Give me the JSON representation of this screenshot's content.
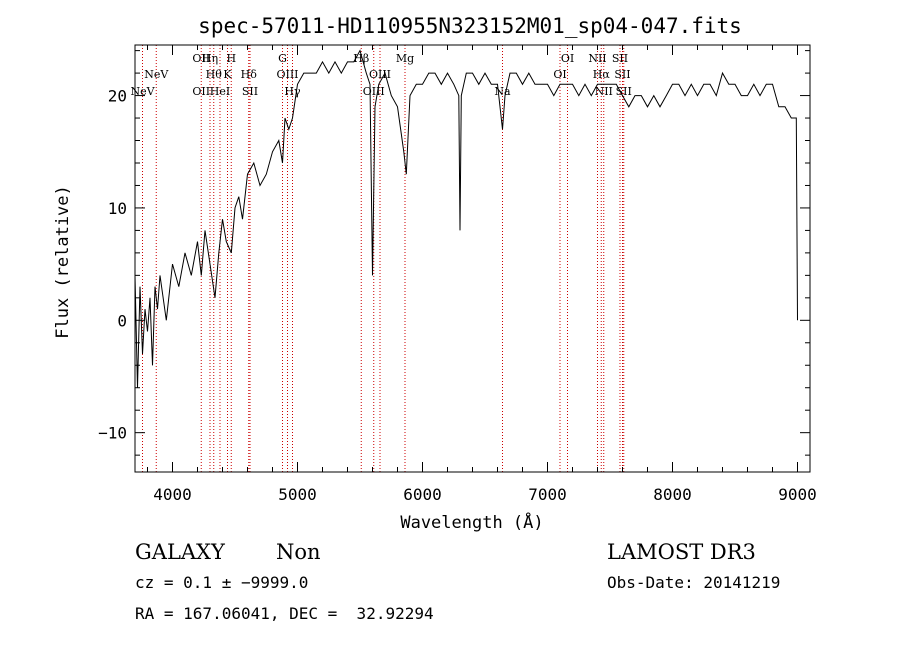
{
  "chart_data": {
    "type": "line",
    "title": "spec-57011-HD110955N323152M01_sp04-047.fits",
    "xlabel": "Wavelength (Å)",
    "ylabel": "Flux (relative)",
    "xlim": [
      3700,
      9100
    ],
    "ylim": [
      -13.5,
      24.5
    ],
    "xticks": [
      4000,
      5000,
      6000,
      7000,
      8000,
      9000
    ],
    "yticks": [
      -10,
      0,
      10,
      20
    ],
    "grid": false,
    "line_color": "#000000",
    "marker_color": "#cc0000",
    "series": [
      {
        "x": [
          3700,
          3720,
          3740,
          3760,
          3780,
          3800,
          3820,
          3840,
          3860,
          3880,
          3900,
          3950,
          4000,
          4050,
          4100,
          4150,
          4200,
          4230,
          4260,
          4300,
          4340,
          4370,
          4400,
          4430,
          4470,
          4500,
          4530,
          4560,
          4600,
          4650,
          4700,
          4750,
          4800,
          4850,
          4880,
          4900,
          4930,
          4960,
          5000,
          5050,
          5100,
          5150,
          5200,
          5250,
          5300,
          5350,
          5400,
          5450,
          5500,
          5550,
          5580,
          5600,
          5620,
          5650,
          5700,
          5750,
          5800,
          5850,
          5870,
          5900,
          5950,
          6000,
          6050,
          6100,
          6150,
          6200,
          6250,
          6290,
          6300,
          6310,
          6330,
          6350,
          6400,
          6450,
          6500,
          6550,
          6600,
          6640,
          6660,
          6700,
          6750,
          6800,
          6850,
          6900,
          6950,
          7000,
          7050,
          7100,
          7150,
          7200,
          7250,
          7300,
          7350,
          7400,
          7450,
          7500,
          7550,
          7600,
          7650,
          7700,
          7750,
          7800,
          7850,
          7900,
          7950,
          8000,
          8050,
          8100,
          8150,
          8200,
          8250,
          8300,
          8350,
          8400,
          8450,
          8500,
          8550,
          8600,
          8650,
          8700,
          8750,
          8800,
          8850,
          8900,
          8950,
          8990,
          9000
        ],
        "y": [
          4,
          -6,
          3,
          -3,
          1,
          -1,
          2,
          -4,
          3,
          1,
          4,
          0,
          5,
          3,
          6,
          4,
          7,
          4,
          8,
          5,
          2,
          6,
          9,
          7,
          6,
          10,
          11,
          9,
          13,
          14,
          12,
          13,
          15,
          16,
          14,
          18,
          17,
          18,
          21,
          22,
          22,
          22,
          23,
          22,
          23,
          22,
          23,
          23,
          24,
          22,
          21,
          4,
          19,
          21,
          22,
          20,
          19,
          15,
          13,
          20,
          21,
          21,
          22,
          22,
          21,
          22,
          21,
          20,
          8,
          20,
          21,
          22,
          22,
          21,
          22,
          21,
          21,
          17,
          20,
          22,
          22,
          21,
          22,
          21,
          21,
          21,
          20,
          21,
          21,
          21,
          20,
          21,
          20,
          21,
          21,
          21,
          21,
          20,
          19,
          20,
          20,
          19,
          20,
          19,
          20,
          21,
          21,
          20,
          21,
          20,
          21,
          21,
          20,
          22,
          21,
          21,
          20,
          20,
          21,
          20,
          21,
          21,
          19,
          19,
          18,
          18,
          0
        ]
      }
    ],
    "lines": [
      {
        "x": 3760,
        "label": "NeV",
        "row": 2
      },
      {
        "x": 3870,
        "label": "NeV",
        "row": 1
      },
      {
        "x": 4230,
        "label": "OII",
        "row": 0
      },
      {
        "x": 4230,
        "label": "OII",
        "row": 2
      },
      {
        "x": 4300,
        "label": "Hη",
        "row": 0
      },
      {
        "x": 4330,
        "label": "Hθ",
        "row": 1
      },
      {
        "x": 4380,
        "label": "HeI",
        "row": 2
      },
      {
        "x": 4440,
        "label": "K",
        "row": 1
      },
      {
        "x": 4470,
        "label": "H",
        "row": 0
      },
      {
        "x": 4610,
        "label": "Hδ",
        "row": 1
      },
      {
        "x": 4620,
        "label": "SII",
        "row": 2
      },
      {
        "x": 4880,
        "label": "G",
        "row": 0
      },
      {
        "x": 4920,
        "label": "OIII",
        "row": 1
      },
      {
        "x": 4960,
        "label": "Hγ",
        "row": 2
      },
      {
        "x": 5510,
        "label": "Hβ",
        "row": 0
      },
      {
        "x": 5610,
        "label": "OIII",
        "row": 2
      },
      {
        "x": 5660,
        "label": "OIII",
        "row": 1
      },
      {
        "x": 5860,
        "label": "Mg",
        "row": 0
      },
      {
        "x": 6640,
        "label": "Na",
        "row": 2
      },
      {
        "x": 7100,
        "label": "OI",
        "row": 1
      },
      {
        "x": 7160,
        "label": "OI",
        "row": 0
      },
      {
        "x": 7400,
        "label": "NII",
        "row": 0
      },
      {
        "x": 7430,
        "label": "Hα",
        "row": 1
      },
      {
        "x": 7450,
        "label": "NII",
        "row": 2
      },
      {
        "x": 7580,
        "label": "SII",
        "row": 0
      },
      {
        "x": 7600,
        "label": "SII",
        "row": 1
      },
      {
        "x": 7610,
        "label": "SII",
        "row": 2
      }
    ]
  },
  "info": {
    "class_label": "GALAXY",
    "subclass_label": "Non",
    "survey": "LAMOST DR3",
    "cz": "cz = 0.1 ± −9999.0",
    "obs_date": "Obs-Date: 20141219",
    "radec": "RA = 167.06041, DEC =  32.92294"
  }
}
